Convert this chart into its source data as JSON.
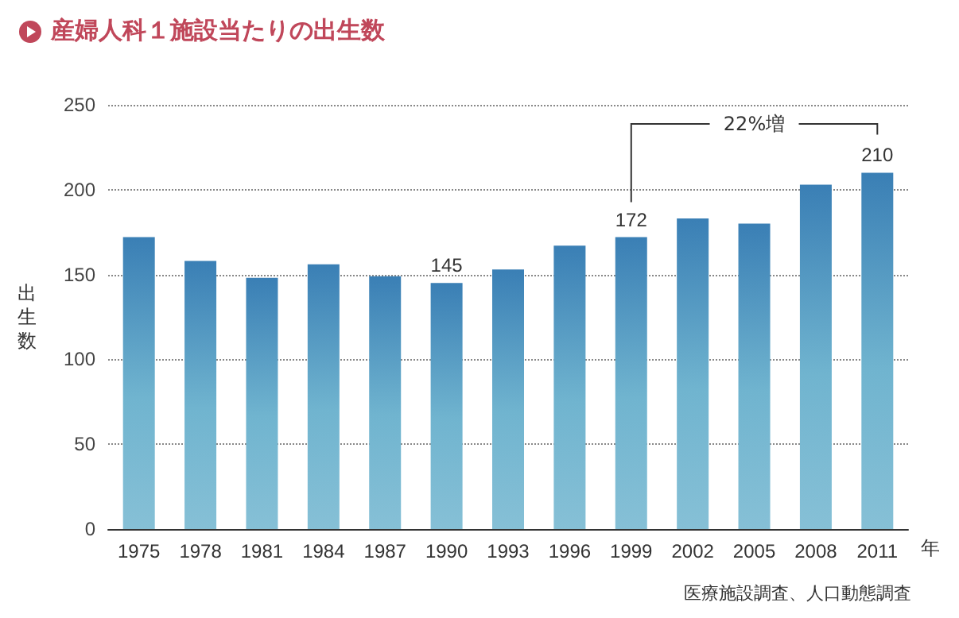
{
  "chart_data": {
    "type": "bar",
    "title": "産婦人科１施設当たりの出生数",
    "ylabel": "出生数",
    "xlabel": "年",
    "categories": [
      "1975",
      "1978",
      "1981",
      "1984",
      "1987",
      "1990",
      "1993",
      "1996",
      "1999",
      "2002",
      "2005",
      "2008",
      "2011"
    ],
    "series": [
      {
        "color": "#3a7fb5",
        "values": [
          172,
          158,
          148,
          156,
          149,
          145,
          153,
          167,
          172,
          183,
          180,
          203,
          210
        ],
        "value_labels": [
          null,
          null,
          null,
          null,
          null,
          "145",
          null,
          null,
          "172",
          null,
          null,
          null,
          "210"
        ]
      }
    ],
    "ylim": [
      0,
      250
    ],
    "yticks": [
      0,
      50,
      100,
      150,
      200,
      250
    ],
    "grid": "y",
    "line_style": "dotted",
    "annotations": [
      "22%増",
      "医療施設調査、人口動態調査"
    ]
  }
}
